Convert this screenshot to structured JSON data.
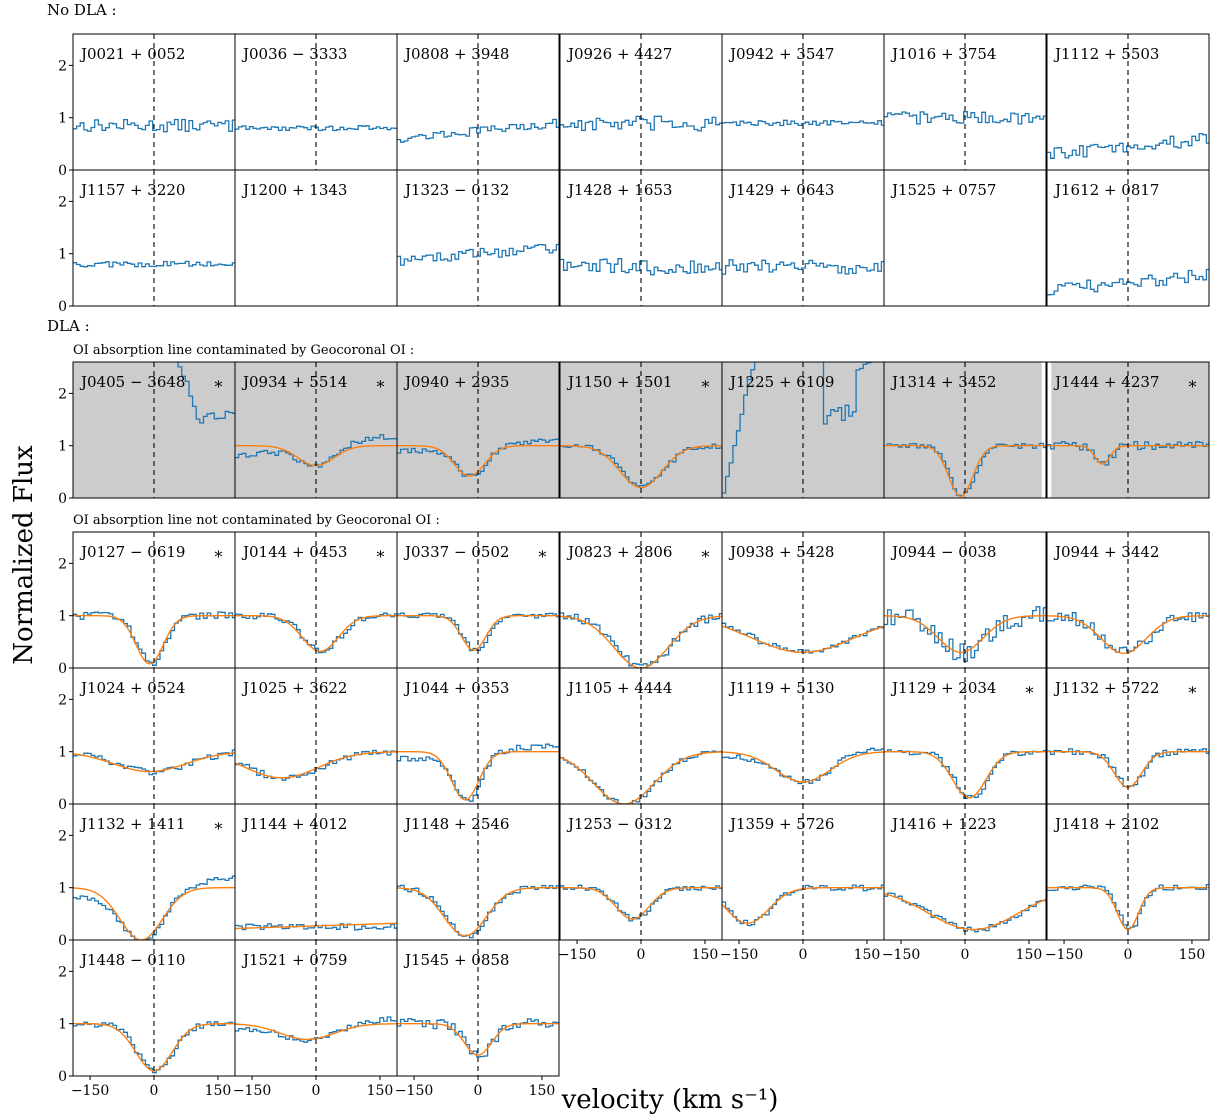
{
  "figure": {
    "section_no_dla": "No DLA :",
    "section_dla": "DLA :",
    "subsection_contaminated": "OI absorption line contaminated by Geocoronal OI :",
    "subsection_not_contaminated": "OI absorption line not contaminated by Geocoronal OI :",
    "ylabel": "Normalized Flux",
    "xlabel": "velocity (km s⁻¹)",
    "star_symbol": "∗"
  },
  "chart_data": {
    "type": "line",
    "xlim": [
      -190,
      190
    ],
    "ylim": [
      0,
      2.6
    ],
    "x_ticks": [
      -150,
      0,
      150
    ],
    "x_tick_labels": [
      "−150",
      "0",
      "150"
    ],
    "y_ticks": [
      0,
      1,
      2
    ],
    "y_tick_labels": [
      "0",
      "1",
      "2"
    ],
    "series_colors": {
      "spectrum": "#1f77b4",
      "fit": "#ff7f0e",
      "shade": "#cccccc"
    },
    "panels": [
      {
        "name": "J0021 + 0052",
        "group": "no_dla",
        "row": 0,
        "col": 0,
        "level": 0.85,
        "noise": 0.12
      },
      {
        "name": "J0036 − 3333",
        "group": "no_dla",
        "row": 0,
        "col": 1,
        "level": 0.8,
        "noise": 0.05
      },
      {
        "name": "J0808 + 3948",
        "group": "no_dla",
        "row": 0,
        "col": 2,
        "level": 0.75,
        "noise": 0.08,
        "slope": 0.3
      },
      {
        "name": "J0926 + 4427",
        "group": "no_dla",
        "row": 0,
        "col": 3,
        "level": 0.88,
        "noise": 0.15
      },
      {
        "name": "J0942 + 3547",
        "group": "no_dla",
        "row": 0,
        "col": 4,
        "level": 0.9,
        "noise": 0.05
      },
      {
        "name": "J1016 + 3754",
        "group": "no_dla",
        "row": 0,
        "col": 5,
        "level": 1.0,
        "noise": 0.12
      },
      {
        "name": "J1112 + 5503",
        "group": "no_dla",
        "row": 0,
        "col": 6,
        "level": 0.45,
        "noise": 0.12,
        "slope": 0.3
      },
      {
        "name": "J1157 + 3220",
        "group": "no_dla",
        "row": 1,
        "col": 0,
        "level": 0.8,
        "noise": 0.06
      },
      {
        "name": "J1200 + 1343",
        "group": "no_dla",
        "row": 1,
        "col": 1,
        "empty": true
      },
      {
        "name": "J1323 − 0132",
        "group": "no_dla",
        "row": 1,
        "col": 2,
        "level": 1.0,
        "noise": 0.1,
        "slope": 0.25
      },
      {
        "name": "J1428 + 1653",
        "group": "no_dla",
        "row": 1,
        "col": 3,
        "level": 0.75,
        "noise": 0.16
      },
      {
        "name": "J1429 + 0643",
        "group": "no_dla",
        "row": 1,
        "col": 4,
        "level": 0.75,
        "noise": 0.14
      },
      {
        "name": "J1525 + 0757",
        "group": "no_dla",
        "row": 1,
        "col": 5,
        "empty": true
      },
      {
        "name": "J1612 + 0817",
        "group": "no_dla",
        "row": 1,
        "col": 6,
        "level": 0.45,
        "noise": 0.12,
        "slope": 0.3
      },
      {
        "name": "J0405 − 3648",
        "group": "contaminated",
        "row": 2,
        "col": 0,
        "star": true,
        "shaded": true,
        "special": "rise"
      },
      {
        "name": "J0934 + 5514",
        "group": "contaminated",
        "row": 2,
        "col": 1,
        "star": true,
        "shaded": true,
        "level": 1.0,
        "depth": 0.38,
        "center": 0,
        "width": 60,
        "noise": 0.06,
        "slope": 0.4
      },
      {
        "name": "J0940 + 2935",
        "group": "contaminated",
        "row": 2,
        "col": 2,
        "shaded": true,
        "level": 1.0,
        "depth": 0.58,
        "center": -20,
        "width": 50,
        "noise": 0.05,
        "slope": 0.25
      },
      {
        "name": "J1150 + 1501",
        "group": "contaminated",
        "row": 2,
        "col": 3,
        "star": true,
        "shaded": true,
        "level": 1.0,
        "depth": 0.8,
        "center": 0,
        "width": 70,
        "noise": 0.05
      },
      {
        "name": "J1225 + 6109",
        "group": "contaminated",
        "row": 2,
        "col": 4,
        "shaded": true,
        "special": "bump"
      },
      {
        "name": "J1314 + 3452",
        "group": "contaminated",
        "row": 2,
        "col": 5,
        "shaded": true,
        "shade_to": 180,
        "level": 1.0,
        "depth": 0.97,
        "center": -10,
        "width": 40,
        "noise": 0.05
      },
      {
        "name": "J1444 + 4237",
        "group": "contaminated",
        "row": 2,
        "col": 6,
        "star": true,
        "shaded": true,
        "shade_from": -180,
        "level": 1.0,
        "depth": 0.35,
        "center": -60,
        "width": 25,
        "noise": 0.08
      },
      {
        "name": "J0127 − 0619",
        "group": "clean",
        "row": 3,
        "col": 0,
        "star": true,
        "level": 1.0,
        "depth": 0.92,
        "center": -10,
        "width": 45,
        "noise": 0.07
      },
      {
        "name": "J0144 + 0453",
        "group": "clean",
        "row": 3,
        "col": 1,
        "star": true,
        "level": 1.0,
        "depth": 0.68,
        "center": 10,
        "width": 60,
        "noise": 0.06
      },
      {
        "name": "J0337 − 0502",
        "group": "clean",
        "row": 3,
        "col": 2,
        "star": true,
        "level": 1.0,
        "depth": 0.66,
        "center": -10,
        "width": 40,
        "noise": 0.05
      },
      {
        "name": "J0823 + 2806",
        "group": "clean",
        "row": 3,
        "col": 3,
        "star": true,
        "level": 1.0,
        "depth": 1.0,
        "center": 0,
        "width": 90,
        "noise": 0.08
      },
      {
        "name": "J0938 + 5428",
        "group": "clean",
        "row": 3,
        "col": 4,
        "level": 1.0,
        "depth": 0.7,
        "center": 0,
        "width": 170,
        "noise": 0.06
      },
      {
        "name": "J0944 − 0038",
        "group": "clean",
        "row": 3,
        "col": 5,
        "level": 1.0,
        "depth": 0.7,
        "center": -10,
        "width": 75,
        "noise": 0.18
      },
      {
        "name": "J0944 + 3442",
        "group": "clean",
        "row": 3,
        "col": 6,
        "level": 1.0,
        "depth": 0.72,
        "center": -10,
        "width": 75,
        "noise": 0.12
      },
      {
        "name": "J1024 + 0524",
        "group": "clean",
        "row": 4,
        "col": 0,
        "level": 1.0,
        "depth": 0.38,
        "center": -10,
        "width": 120,
        "noise": 0.06
      },
      {
        "name": "J1025 + 3622",
        "group": "clean",
        "row": 4,
        "col": 1,
        "level": 1.0,
        "depth": 0.5,
        "center": -80,
        "width": 120,
        "noise": 0.06
      },
      {
        "name": "J1044 + 0353",
        "group": "clean",
        "row": 4,
        "col": 2,
        "level": 1.0,
        "depth": 0.92,
        "center": -30,
        "width": 45,
        "noise": 0.06,
        "slope": 0.3
      },
      {
        "name": "J1105 + 4444",
        "group": "clean",
        "row": 4,
        "col": 3,
        "level": 1.0,
        "depth": 1.0,
        "center": -40,
        "width": 100,
        "noise": 0.05
      },
      {
        "name": "J1119 + 5130",
        "group": "clean",
        "row": 4,
        "col": 4,
        "level": 1.0,
        "depth": 0.58,
        "center": 0,
        "width": 90,
        "noise": 0.05,
        "slope": 0.2
      },
      {
        "name": "J1129 + 2034",
        "group": "clean",
        "row": 4,
        "col": 5,
        "star": true,
        "level": 1.0,
        "depth": 0.88,
        "center": 10,
        "width": 55,
        "noise": 0.06
      },
      {
        "name": "J1132 + 5722",
        "group": "clean",
        "row": 4,
        "col": 6,
        "star": true,
        "level": 1.0,
        "depth": 0.68,
        "center": 0,
        "width": 45,
        "noise": 0.06
      },
      {
        "name": "J1132 + 1411",
        "group": "clean",
        "row": 5,
        "col": 0,
        "star": true,
        "level": 1.0,
        "depth": 1.0,
        "center": -30,
        "width": 70,
        "noise": 0.05,
        "slope": 0.4
      },
      {
        "name": "J1144 + 4012",
        "group": "clean",
        "row": 5,
        "col": 1,
        "level": 0.25,
        "noise": 0.06,
        "fitflat": true
      },
      {
        "name": "J1148 + 2546",
        "group": "clean",
        "row": 5,
        "col": 2,
        "level": 1.0,
        "depth": 0.92,
        "center": -30,
        "width": 70,
        "noise": 0.06
      },
      {
        "name": "J1253 − 0312",
        "group": "clean",
        "row": 5,
        "col": 3,
        "level": 1.0,
        "depth": 0.6,
        "center": -20,
        "width": 55,
        "noise": 0.05
      },
      {
        "name": "J1359 + 5726",
        "group": "clean",
        "row": 5,
        "col": 4,
        "level": 1.0,
        "depth": 0.68,
        "center": -130,
        "width": 70,
        "noise": 0.06
      },
      {
        "name": "J1416 + 1223",
        "group": "clean",
        "row": 5,
        "col": 5,
        "level": 1.0,
        "depth": 0.8,
        "center": 20,
        "width": 150,
        "noise": 0.05
      },
      {
        "name": "J1418 + 2102",
        "group": "clean",
        "row": 5,
        "col": 6,
        "level": 1.0,
        "depth": 0.8,
        "center": 0,
        "width": 35,
        "noise": 0.06
      },
      {
        "name": "J1448 − 0110",
        "group": "clean",
        "row": 6,
        "col": 0,
        "level": 1.0,
        "depth": 0.9,
        "center": 0,
        "width": 60,
        "noise": 0.06
      },
      {
        "name": "J1521 + 0759",
        "group": "clean",
        "row": 6,
        "col": 1,
        "level": 1.0,
        "depth": 0.3,
        "center": -20,
        "width": 90,
        "noise": 0.05,
        "slope": 0.2
      },
      {
        "name": "J1545 + 0858",
        "group": "clean",
        "row": 6,
        "col": 2,
        "level": 1.0,
        "depth": 0.6,
        "center": 0,
        "width": 45,
        "noise": 0.1
      }
    ]
  }
}
